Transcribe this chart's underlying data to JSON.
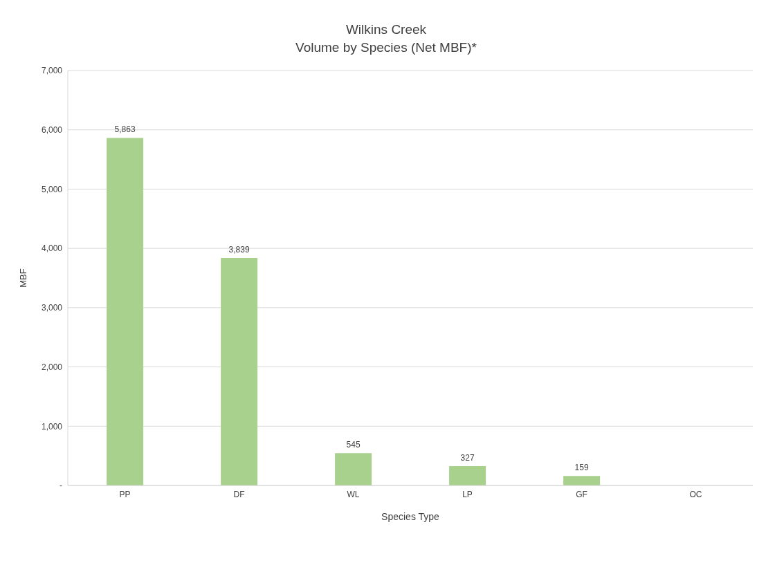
{
  "chart_data": {
    "type": "bar",
    "title": "Wilkins Creek\nVolume by Species (Net MBF)*",
    "xlabel": "Species Type",
    "ylabel": "MBF",
    "categories": [
      "PP",
      "DF",
      "WL",
      "LP",
      "GF",
      "OC"
    ],
    "values": [
      5863,
      3839,
      545,
      327,
      159,
      0
    ],
    "value_labels": [
      "5,863",
      "3,839",
      "545",
      "327",
      "159",
      null
    ],
    "color": "#a9d18e",
    "ylim": [
      0,
      7000
    ],
    "yticks": [
      {
        "value": 0,
        "label": "-"
      },
      {
        "value": 1000,
        "label": "1,000"
      },
      {
        "value": 2000,
        "label": "2,000"
      },
      {
        "value": 3000,
        "label": "3,000"
      },
      {
        "value": 4000,
        "label": "4,000"
      },
      {
        "value": 5000,
        "label": "5,000"
      },
      {
        "value": 6000,
        "label": "6,000"
      },
      {
        "value": 7000,
        "label": "7,000"
      }
    ],
    "grid": "y"
  }
}
